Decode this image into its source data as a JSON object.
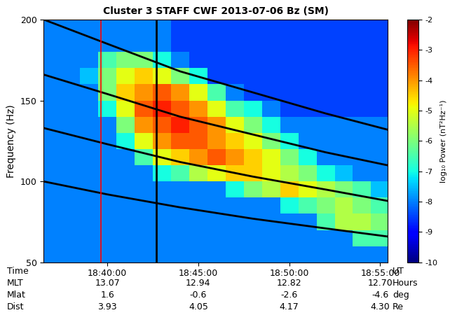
{
  "chart_data": {
    "type": "spectrogram",
    "title": "Cluster 3 STAFF CWF 2013-07-06 Bz (SM)",
    "y_label": "Frequency (Hz)",
    "xlim": [
      36.5,
      55.4
    ],
    "xticks": [
      {
        "value": 40,
        "label": "18:40:00"
      },
      {
        "value": 45,
        "label": "18:45:00"
      },
      {
        "value": 50,
        "label": "18:50:00"
      },
      {
        "value": 55,
        "label": "18:55:00"
      }
    ],
    "ylim": [
      50,
      200
    ],
    "yticks": [
      50,
      100,
      150,
      200
    ],
    "x_label_rows": [
      {
        "name": "Time",
        "unit": "UT"
      },
      {
        "name": "MLT",
        "unit": "Hours",
        "labels": [
          "13.07",
          "12.94",
          "12.82",
          "12.70"
        ]
      },
      {
        "name": "Mlat",
        "unit": "deg",
        "labels": [
          "1.6",
          "-0.6",
          "-2.6",
          "-4.6"
        ]
      },
      {
        "name": "Dist",
        "unit": "Re",
        "labels": [
          "3.93",
          "4.05",
          "4.17",
          "4.30"
        ]
      }
    ],
    "x_edges": [
      36.5,
      37.5,
      38.5,
      39.5,
      40.5,
      41.5,
      42.5,
      43.5,
      44.5,
      45.5,
      46.5,
      47.5,
      48.5,
      49.5,
      50.5,
      51.5,
      52.5,
      53.5,
      54.5,
      55.4
    ],
    "y_edges": [
      50,
      60,
      70,
      80,
      90,
      100,
      110,
      120,
      130,
      140,
      150,
      160,
      170,
      180,
      190,
      200
    ],
    "cells": [
      [
        -8,
        -8,
        -8,
        -8,
        -8,
        -8,
        -8,
        -8,
        -8,
        -8,
        -8,
        -8,
        -8,
        -8,
        -8,
        -8,
        -8,
        -8,
        -8
      ],
      [
        -8,
        -8,
        -8,
        -8,
        -8,
        -8,
        -8,
        -8,
        -8,
        -8,
        -8,
        -8,
        -8,
        -8,
        -8,
        -8,
        -8,
        -6.5,
        -6.5
      ],
      [
        -8,
        -8,
        -8,
        -8,
        -8,
        -8,
        -8,
        -8,
        -8,
        -8,
        -8,
        -8,
        -8,
        -8,
        -8,
        -6.5,
        -5.5,
        -5.5,
        -6
      ],
      [
        -8,
        -8,
        -8,
        -8,
        -8,
        -8,
        -8,
        -8,
        -8,
        -8,
        -8,
        -8,
        -8,
        -7,
        -6.5,
        -6,
        -5.5,
        -6,
        -6.5
      ],
      [
        -8,
        -8,
        -8,
        -8,
        -8,
        -8,
        -8,
        -8,
        -8,
        -8,
        -7,
        -6,
        -5.5,
        -4.5,
        -5,
        -5.5,
        -6,
        -6.5,
        -7.5
      ],
      [
        -8,
        -8,
        -8,
        -8,
        -8,
        -8,
        -7,
        -6.5,
        -5.5,
        -5,
        -4.5,
        -4.5,
        -5,
        -5.5,
        -6,
        -7,
        -7.5,
        -8,
        -8
      ],
      [
        -8,
        -8,
        -8,
        -8,
        -8,
        -6.5,
        -5,
        -4.5,
        -4,
        -3.5,
        -4,
        -4.5,
        -5,
        -6,
        -7,
        -8,
        -8,
        -8,
        -8
      ],
      [
        -8,
        -8,
        -8,
        -8,
        -7,
        -5,
        -4,
        -3.5,
        -3.5,
        -4,
        -4.5,
        -5,
        -6,
        -7,
        -8,
        -8,
        -8,
        -8,
        -8
      ],
      [
        -8,
        -8,
        -8,
        -8,
        -6,
        -4,
        -3.5,
        -3,
        -3.5,
        -4,
        -5,
        -6,
        -7,
        -8,
        -8,
        -8,
        -8,
        -8,
        -8
      ],
      [
        -8,
        -8,
        -8,
        -7,
        -5,
        -3.5,
        -3,
        -3.5,
        -4,
        -5,
        -6.5,
        -7,
        -8,
        -8.5,
        -8.5,
        -8.5,
        -8.5,
        -8.5,
        -8.5
      ],
      [
        -8,
        -8,
        -8,
        -6,
        -4.5,
        -4,
        -3.5,
        -4,
        -5,
        -6.5,
        -8,
        -8.5,
        -8.5,
        -8.5,
        -8.5,
        -8.5,
        -8.5,
        -8.5,
        -8.5
      ],
      [
        -8,
        -8,
        -7.5,
        -6,
        -5,
        -4.5,
        -5,
        -6,
        -7,
        -8.5,
        -8.5,
        -8.5,
        -8.5,
        -8.5,
        -8.5,
        -8.5,
        -8.5,
        -8.5,
        -8.5
      ],
      [
        -8,
        -8,
        -8,
        -6.5,
        -6,
        -6,
        -7,
        -8,
        -8.5,
        -8.5,
        -8.5,
        -8.5,
        -8.5,
        -8.5,
        -8.5,
        -8.5,
        -8.5,
        -8.5,
        -8.5
      ],
      [
        -8,
        -8,
        -8,
        -8,
        -8,
        -8,
        -8,
        -8.5,
        -8.5,
        -8.5,
        -8.5,
        -8.5,
        -8.5,
        -8.5,
        -8.5,
        -8.5,
        -8.5,
        -8.5,
        -8.5
      ],
      [
        -8,
        -8,
        -8,
        -8,
        -8,
        -8,
        -8,
        -8.5,
        -8.5,
        -8.5,
        -8.5,
        -8.5,
        -8.5,
        -8.5,
        -8.5,
        -8.5,
        -8.5,
        -8.5,
        -8.5
      ]
    ],
    "colorbar": {
      "label": "log₁₀ Power (nT²Hz⁻¹)",
      "lim": [
        -10,
        -2
      ],
      "ticks": [
        -10,
        -9,
        -8,
        -7,
        -6,
        -5,
        -4,
        -3,
        -2
      ]
    },
    "lines": [
      {
        "x": [
          36.5,
          40,
          44,
          48,
          52,
          55.4
        ],
        "values": [
          200,
          185,
          168,
          155,
          142,
          132
        ],
        "color": "black"
      },
      {
        "x": [
          36.5,
          40,
          44,
          48,
          52,
          55.4
        ],
        "values": [
          166,
          154,
          140,
          129,
          118,
          110
        ],
        "color": "black"
      },
      {
        "x": [
          36.5,
          40,
          44,
          48,
          52,
          55.4
        ],
        "values": [
          133,
          123,
          112,
          103,
          95,
          88
        ],
        "color": "black"
      },
      {
        "x": [
          36.5,
          40,
          44,
          48,
          52,
          55.4
        ],
        "values": [
          100,
          92,
          84,
          77,
          71,
          66
        ],
        "color": "black"
      }
    ],
    "vertical_lines": [
      {
        "x": 39.65,
        "color": "red"
      },
      {
        "x": 42.7,
        "color": "black"
      }
    ]
  }
}
